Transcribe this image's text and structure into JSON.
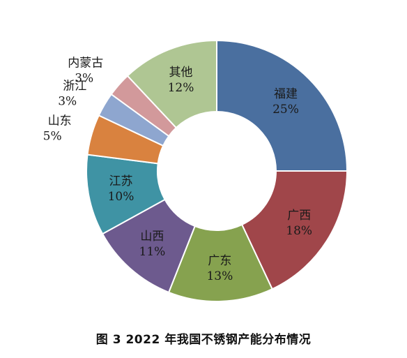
{
  "chart_data": {
    "type": "pie",
    "variant": "donut",
    "start": "top",
    "direction": "clockwise",
    "slices": [
      {
        "label": "福建",
        "value": 25,
        "value_label": "25%",
        "color": "#4a6f9f"
      },
      {
        "label": "广西",
        "value": 18,
        "value_label": "18%",
        "color": "#a0464a"
      },
      {
        "label": "广东",
        "value": 13,
        "value_label": "13%",
        "color": "#86a24f"
      },
      {
        "label": "山西",
        "value": 11,
        "value_label": "11%",
        "color": "#6d5a8e"
      },
      {
        "label": "江苏",
        "value": 10,
        "value_label": "10%",
        "color": "#3f93a4"
      },
      {
        "label": "山东",
        "value": 5,
        "value_label": "5%",
        "color": "#d9823f"
      },
      {
        "label": "浙江",
        "value": 3,
        "value_label": "3%",
        "color": "#8ea6cf"
      },
      {
        "label": "内蒙古",
        "value": 3,
        "value_label": "3%",
        "color": "#d2999b"
      },
      {
        "label": "其他",
        "value": 12,
        "value_label": "12%",
        "color": "#afc693"
      }
    ]
  },
  "caption": "图 3  2022 年我国不锈钢产能分布情况"
}
